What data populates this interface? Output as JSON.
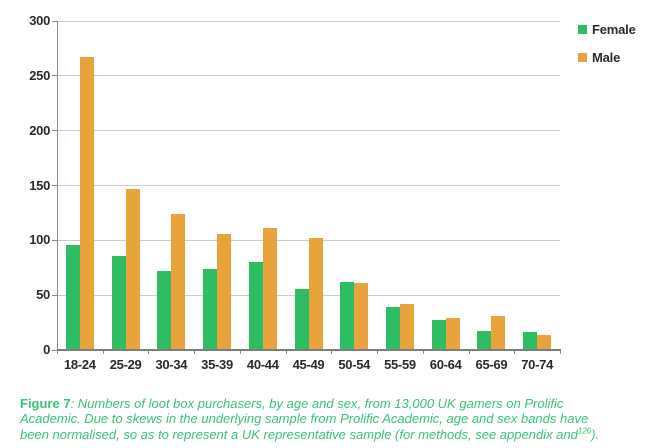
{
  "chart_data": {
    "type": "bar",
    "title": "",
    "xlabel": "",
    "ylabel": "",
    "categories": [
      "18-24",
      "25-29",
      "30-34",
      "35-39",
      "40-44",
      "45-49",
      "50-54",
      "55-59",
      "60-64",
      "65-69",
      "70-74"
    ],
    "series": [
      {
        "name": "Female",
        "color": "#2ebd62",
        "values": [
          96,
          86,
          72,
          74,
          80,
          56,
          62,
          39,
          27,
          17,
          16
        ]
      },
      {
        "name": "Male",
        "color": "#e8a33d",
        "values": [
          267,
          147,
          124,
          106,
          111,
          102,
          61,
          42,
          29,
          31,
          14
        ]
      }
    ],
    "ylim": [
      0,
      300
    ],
    "yticks": [
      0,
      50,
      100,
      150,
      200,
      250,
      300
    ],
    "grid": true,
    "legend_position": "top-right"
  },
  "legend": {
    "items": [
      {
        "label": "Female",
        "color": "#2ebd62"
      },
      {
        "label": "Male",
        "color": "#e8a33d"
      }
    ]
  },
  "caption": {
    "label": "Figure 7",
    "body": ": Numbers of loot box purchasers, by age and sex, from 13,000 UK gamers on Prolific Academic. Due to skews in the underlying sample from Prolific Academic, age and sex bands have been normalised, so as to represent a UK representative sample (for methods, see appendix and",
    "superscript": "126",
    "tail": ")."
  },
  "colors": {
    "female": "#2ebd62",
    "male": "#e8a33d",
    "caption_text": "#35c573",
    "gridline": "#cdcdcd",
    "axis": "#8a8a8a",
    "tick_label": "#2b2b2b"
  }
}
